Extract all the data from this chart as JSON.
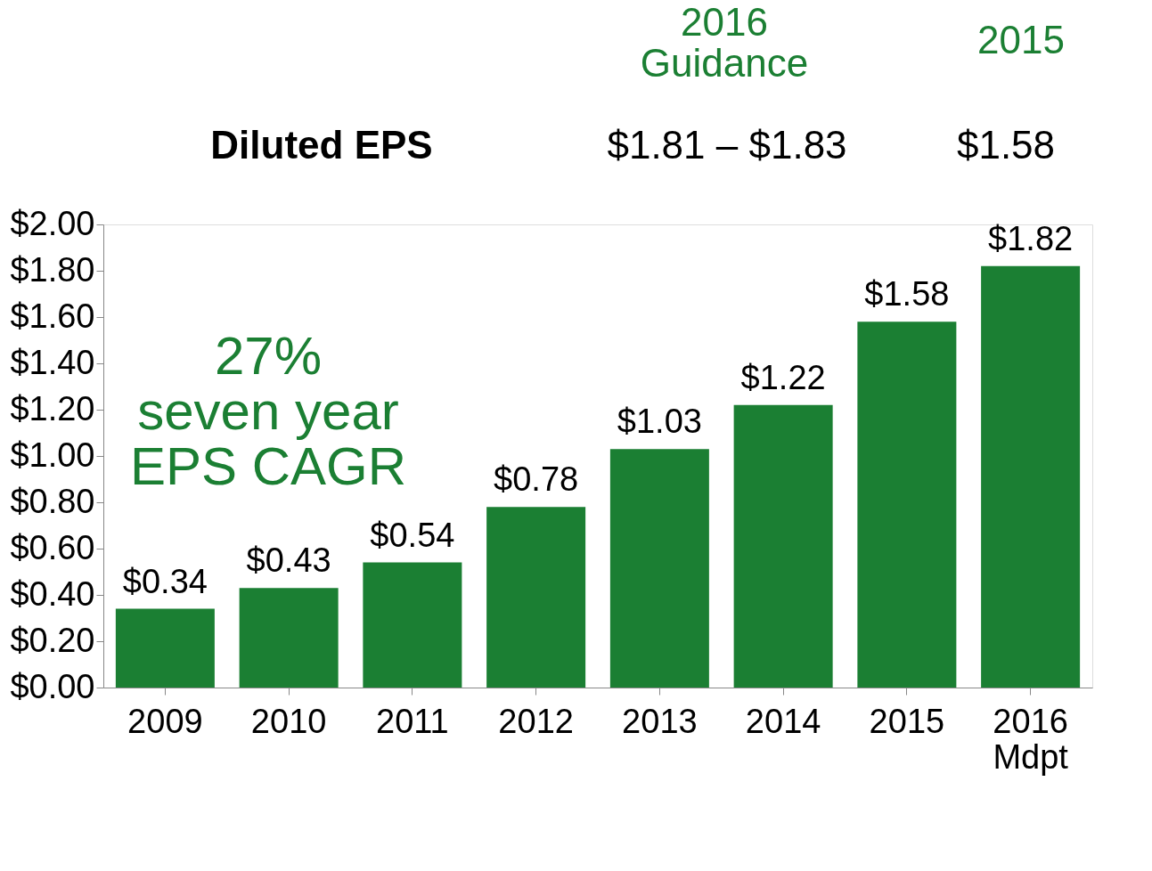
{
  "chart_data": {
    "type": "bar",
    "categories": [
      "2009",
      "2010",
      "2011",
      "2012",
      "2013",
      "2014",
      "2015",
      "2016\nMdpt"
    ],
    "values": [
      0.34,
      0.43,
      0.54,
      0.78,
      1.03,
      1.22,
      1.58,
      1.82
    ],
    "value_labels": [
      "$0.34",
      "$0.43",
      "$0.54",
      "$0.78",
      "$1.03",
      "$1.22",
      "$1.58",
      "$1.82"
    ],
    "color": "#1b7f33",
    "ylim": [
      0,
      2
    ],
    "yticks": [
      {
        "value": 0,
        "label": "$0.00"
      },
      {
        "value": 0.2,
        "label": "$0.20"
      },
      {
        "value": 0.4,
        "label": "$0.40"
      },
      {
        "value": 0.6,
        "label": "$0.60"
      },
      {
        "value": 0.8,
        "label": "$0.80"
      },
      {
        "value": 1,
        "label": "$1.00"
      },
      {
        "value": 1.2,
        "label": "$1.20"
      },
      {
        "value": 1.4,
        "label": "$1.40"
      },
      {
        "value": 1.6,
        "label": "$1.60"
      },
      {
        "value": 1.8,
        "label": "$1.80"
      },
      {
        "value": 2,
        "label": "$2.00"
      }
    ],
    "grid": false,
    "annotations": [
      "Diluted EPS",
      "2016\nGuidance",
      "2015",
      "$1.81 – $1.83",
      "$1.58",
      "27%\nseven year\nEPS CAGR"
    ]
  }
}
